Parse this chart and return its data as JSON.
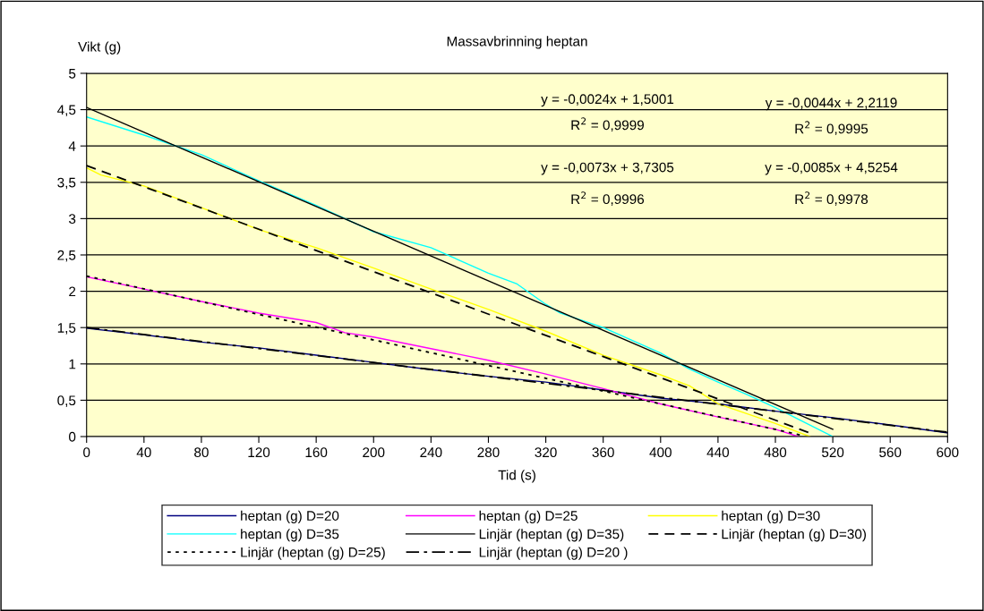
{
  "chart_data": {
    "type": "line",
    "title": "Massavbrinning heptan",
    "xlabel": "Tid (s)",
    "ylabel": "Vikt (g)",
    "xlim": [
      0,
      600
    ],
    "xticks": [
      0,
      40,
      80,
      120,
      160,
      200,
      240,
      280,
      320,
      360,
      400,
      440,
      480,
      520,
      560,
      600
    ],
    "ylim": [
      0,
      5
    ],
    "yticks": [
      0,
      {
        "value": 0.5,
        "label": "0,5"
      },
      1,
      {
        "value": 1.5,
        "label": "1,5"
      },
      2,
      {
        "value": 2.5,
        "label": "2,5"
      },
      3,
      {
        "value": 3.5,
        "label": "3,5"
      },
      4,
      {
        "value": 4.5,
        "label": "4,5"
      },
      5
    ],
    "grid": "y",
    "legend": "bottom",
    "marker": "none",
    "series": [
      {
        "name": "heptan (g) D=20",
        "color": "#000080",
        "line_style": "solid",
        "x": [
          0,
          40,
          80,
          120,
          160,
          200,
          240,
          280,
          320,
          360,
          400,
          440,
          480,
          520,
          560,
          600
        ],
        "values": [
          1.49,
          1.4,
          1.3,
          1.22,
          1.12,
          1.02,
          0.92,
          0.83,
          0.75,
          0.64,
          0.53,
          0.45,
          0.35,
          0.26,
          0.16,
          0.05
        ]
      },
      {
        "name": "heptan (g) D=25",
        "color": "#ff00ff",
        "line_style": "solid",
        "x": [
          0,
          40,
          80,
          120,
          160,
          180,
          200,
          240,
          280,
          320,
          360,
          400,
          440,
          480,
          496
        ],
        "values": [
          2.2,
          2.03,
          1.86,
          1.7,
          1.57,
          1.43,
          1.37,
          1.21,
          1.05,
          0.86,
          0.66,
          0.45,
          0.27,
          0.1,
          0.0
        ]
      },
      {
        "name": "heptan (g) D=30",
        "color": "#ffff00",
        "line_style": "solid",
        "x": [
          0,
          10,
          40,
          80,
          120,
          160,
          200,
          240,
          280,
          320,
          360,
          400,
          420,
          440,
          480,
          504
        ],
        "values": [
          3.7,
          3.6,
          3.45,
          3.15,
          2.85,
          2.6,
          2.32,
          2.03,
          1.75,
          1.45,
          1.12,
          0.85,
          0.7,
          0.45,
          0.18,
          0.0
        ]
      },
      {
        "name": "heptan (g) D=35",
        "color": "#00ffff",
        "line_style": "solid",
        "x": [
          0,
          40,
          80,
          120,
          160,
          200,
          240,
          280,
          300,
          320,
          330,
          360,
          400,
          420,
          440,
          460,
          480,
          500,
          520
        ],
        "values": [
          4.4,
          4.15,
          3.88,
          3.52,
          3.18,
          2.82,
          2.6,
          2.25,
          2.1,
          1.82,
          1.7,
          1.5,
          1.15,
          0.93,
          0.75,
          0.58,
          0.4,
          0.2,
          0.0
        ]
      },
      {
        "name": "Linjär (heptan (g) D=35)",
        "color": "#000000",
        "line_style": "solid",
        "x": [
          0,
          520
        ],
        "values": [
          4.53,
          0.1
        ]
      },
      {
        "name": "Linjär (heptan (g) D=30)",
        "color": "#000000",
        "line_style": "dashed",
        "x": [
          0,
          504
        ],
        "values": [
          3.73,
          0.05
        ]
      },
      {
        "name": "Linjär (heptan (g) D=25)",
        "color": "#000000",
        "line_style": "dotted",
        "x": [
          0,
          500
        ],
        "values": [
          2.21,
          0.01
        ]
      },
      {
        "name": "Linjär (heptan (g) D=20 )",
        "color": "#000000",
        "line_style": "dashdot",
        "x": [
          0,
          600
        ],
        "values": [
          1.5,
          0.06
        ]
      }
    ],
    "annotations": [
      "y = -0,0024x + 1,5001",
      "R$^{2}$ = 0,9999",
      "y = -0,0044x + 2,2119",
      "R$^{2}$ = 0,9995",
      "y = -0,0073x + 3,7305",
      "R$^{2}$ = 0,9996",
      "y = -0,0085x + 4,5254",
      "R$^{2}$ = 0,9978"
    ]
  }
}
